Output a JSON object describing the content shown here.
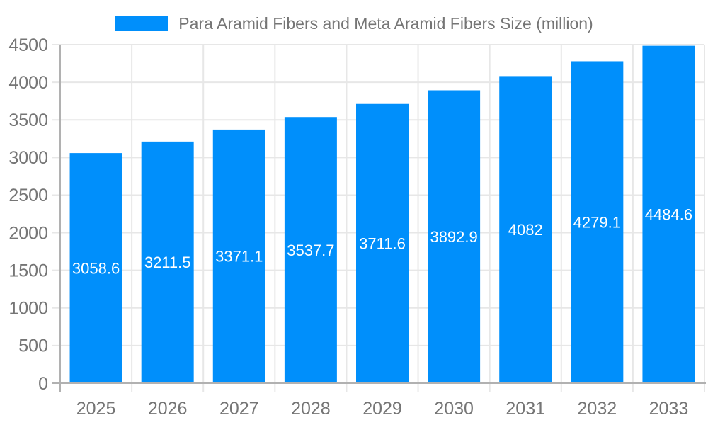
{
  "legend": {
    "label": "Para Aramid Fibers and Meta Aramid Fibers Size (million)",
    "swatch_color": "#008FFB",
    "text_color": "#757575"
  },
  "chart_data": {
    "type": "bar",
    "title": "Para Aramid Fibers and Meta Aramid Fibers Size (million)",
    "categories": [
      "2025",
      "2026",
      "2027",
      "2028",
      "2029",
      "2030",
      "2031",
      "2032",
      "2033"
    ],
    "values": [
      3058.6,
      3211.5,
      3371.1,
      3537.7,
      3711.6,
      3892.9,
      4082,
      4279.1,
      4484.6
    ],
    "value_labels": [
      "3058.6",
      "3211.5",
      "3371.1",
      "3537.7",
      "3711.6",
      "3892.9",
      "4082",
      "4279.1",
      "4484.6"
    ],
    "xlabel": "",
    "ylabel": "",
    "ylim": [
      0,
      4500
    ],
    "ytick_step": 500,
    "ytick_labels": [
      "0",
      "500",
      "1000",
      "1500",
      "2000",
      "2500",
      "3000",
      "3500",
      "4000",
      "4500"
    ],
    "grid": true,
    "legend_position": "top",
    "colors": {
      "bar": "#008FFB",
      "bar_value_label": "#ffffff",
      "axis_tick_label": "#757575",
      "gridline": "#e7e7e7",
      "axis_line": "#b1b1b1"
    }
  }
}
